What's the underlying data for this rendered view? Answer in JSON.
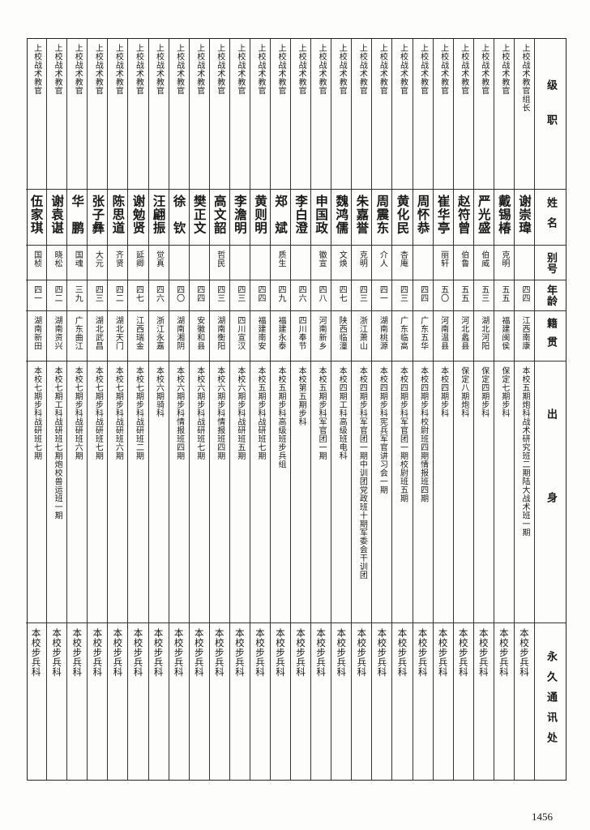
{
  "headers": {
    "rank": "级职",
    "name": "姓名",
    "alias": "别号",
    "age": "年龄",
    "origin": "籍贯",
    "background": "出身",
    "address": "永久通讯处"
  },
  "rows": [
    {
      "rank": "上校战术教官组长",
      "name": "谢崇瑋",
      "alias": "",
      "age": "四四",
      "origin": "江西南康",
      "background": "本校五期炮科战术研究班二期陆大战术班一期",
      "address": "本校步兵科"
    },
    {
      "rank": "上校战术教官",
      "name": "戴锡椿",
      "alias": "克明",
      "age": "五五",
      "origin": "福建闽侯",
      "background": "保定七期步科",
      "address": "本校步兵科"
    },
    {
      "rank": "上校战术教官",
      "name": "严光盛",
      "alias": "伯威",
      "age": "五三",
      "origin": "湖北河阳",
      "background": "保定四期步科",
      "address": "本校步兵科"
    },
    {
      "rank": "上校战术教官",
      "name": "赵符曾",
      "alias": "伯鲁",
      "age": "五五",
      "origin": "河北蠡县",
      "background": "保定八期炮科",
      "address": "本校步兵科"
    },
    {
      "rank": "上校战术教官",
      "name": "崔华亭",
      "alias": "丽轩",
      "age": "五〇",
      "origin": "河南温县",
      "background": "本校四期步科",
      "address": "本校步兵科"
    },
    {
      "rank": "上校战术教官",
      "name": "周怀恭",
      "alias": "",
      "age": "四四",
      "origin": "广东五华",
      "background": "本校四期步科校尉班四期情报班四期",
      "address": "本校步兵科"
    },
    {
      "rank": "上校战术教官",
      "name": "黄化民",
      "alias": "杏庵",
      "age": "四三",
      "origin": "广东临高",
      "background": "本校四期步科军官团一期校尉班五期",
      "address": "本校步兵科"
    },
    {
      "rank": "上校战术教官",
      "name": "周震东",
      "alias": "介人",
      "age": "四一",
      "origin": "湖南桃源",
      "background": "本校四期步科宪兵军官讲习会一期",
      "address": "本校步兵科"
    },
    {
      "rank": "上校战术教官",
      "name": "朱嘉誉",
      "alias": "克明",
      "age": "四三",
      "origin": "浙江萧山",
      "background": "本校四期步科军官团一期中训团党政班十期军委会干训团",
      "address": "本校步兵科"
    },
    {
      "rank": "上校战术教官",
      "name": "魏鸿儒",
      "alias": "文焕",
      "age": "四七",
      "origin": "陕西临潼",
      "background": "本校四期工科高级班电科",
      "address": "本校步兵科"
    },
    {
      "rank": "上校战术教官",
      "name": "申国政",
      "alias": "徽宣",
      "age": "四八",
      "origin": "河南新乡",
      "background": "本校五期步科军官团一期",
      "address": "本校步兵科"
    },
    {
      "rank": "上校战术教官",
      "name": "李白澄",
      "alias": "",
      "age": "四六",
      "origin": "四川奉节",
      "background": "本校第五期步科",
      "address": "本校步兵科"
    },
    {
      "rank": "上校战术教官",
      "name": "郑　斌",
      "alias": "质生",
      "age": "四九",
      "origin": "福建永泰",
      "background": "本校五期步科高级班步兵组",
      "address": "本校步兵科"
    },
    {
      "rank": "上校战术教官",
      "name": "黄则明",
      "alias": "",
      "age": "四四",
      "origin": "福建南安",
      "background": "本校五期步科战研班七期",
      "address": "本校步兵科"
    },
    {
      "rank": "上校战术教官",
      "name": "李澹明",
      "alias": "",
      "age": "四三",
      "origin": "四川宣汉",
      "background": "本校六期步科战研班五期",
      "address": "本校步兵科"
    },
    {
      "rank": "上校战术教官",
      "name": "高文韶",
      "alias": "哲民",
      "age": "四三",
      "origin": "湖南衡阳",
      "background": "本校六期步科情报班四期",
      "address": "本校步兵科"
    },
    {
      "rank": "上校战术教官",
      "name": "樊正文",
      "alias": "",
      "age": "四四",
      "origin": "安徽和县",
      "background": "本校六期步科战研班七期",
      "address": "本校步兵科"
    },
    {
      "rank": "上校战术教官",
      "name": "徐　钦",
      "alias": "",
      "age": "四〇",
      "origin": "湖南湘阴",
      "background": "本校六期步科情报班四期",
      "address": "本校步兵科"
    },
    {
      "rank": "上校战术教官",
      "name": "汪翩振",
      "alias": "觉真",
      "age": "四六",
      "origin": "浙江永嘉",
      "background": "本校六期骑科",
      "address": "本校步兵科"
    },
    {
      "rank": "上校战术教官",
      "name": "谢勉贤",
      "alias": "延卿",
      "age": "四七",
      "origin": "江西瑞金",
      "background": "本校七期步科战研班二期",
      "address": "本校步兵科"
    },
    {
      "rank": "上校战术教官",
      "name": "陈思道",
      "alias": "齐贤",
      "age": "四二",
      "origin": "湖北天门",
      "background": "本校七期步科战研班六期",
      "address": "本校步兵科"
    },
    {
      "rank": "上校战术教官",
      "name": "张子彝",
      "alias": "大元",
      "age": "四三",
      "origin": "湖北武昌",
      "background": "本校七期步科战研班七期",
      "address": "本校步兵科"
    },
    {
      "rank": "上校战术教官",
      "name": "华　鹏",
      "alias": "国魂",
      "age": "三九",
      "origin": "广东曲江",
      "background": "本校七期步科战研班六期",
      "address": "本校步兵科"
    },
    {
      "rank": "上校战术教官",
      "name": "谢袁谌",
      "alias": "晓松",
      "age": "四二",
      "origin": "湖南资兴",
      "background": "本校七期工科战研班七期炮校兽运班一期",
      "address": "本校步兵科"
    },
    {
      "rank": "上校战术教官",
      "name": "伍家琪",
      "alias": "国桢",
      "age": "四一",
      "origin": "湖南新田",
      "background": "本校七期步科战研班七期",
      "address": "本校步兵科"
    }
  ],
  "page_number": "1456"
}
